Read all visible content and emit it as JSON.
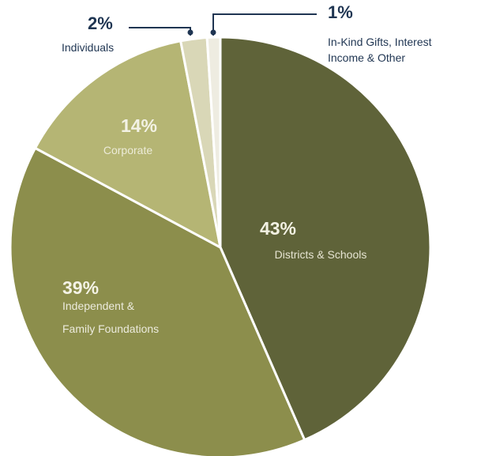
{
  "chart_data": {
    "type": "pie",
    "title": "",
    "slices": [
      {
        "pct_label": "43%",
        "value": 43,
        "label_lines": [
          "Districts & Schools"
        ],
        "color": "#5f6339"
      },
      {
        "pct_label": "39%",
        "value": 39,
        "label_lines": [
          "Independent &",
          "Family Foundations"
        ],
        "color": "#8c8e4c"
      },
      {
        "pct_label": "14%",
        "value": 14,
        "label_lines": [
          "Corporate"
        ],
        "color": "#b5b574"
      },
      {
        "pct_label": "2%",
        "value": 2,
        "label_lines": [
          "Individuals"
        ],
        "color": "#d9d7b7"
      },
      {
        "pct_label": "1%",
        "value": 1,
        "label_lines": [
          "In-Kind Gifts, Interest",
          "Income & Other"
        ],
        "color": "#eeece1"
      }
    ]
  }
}
